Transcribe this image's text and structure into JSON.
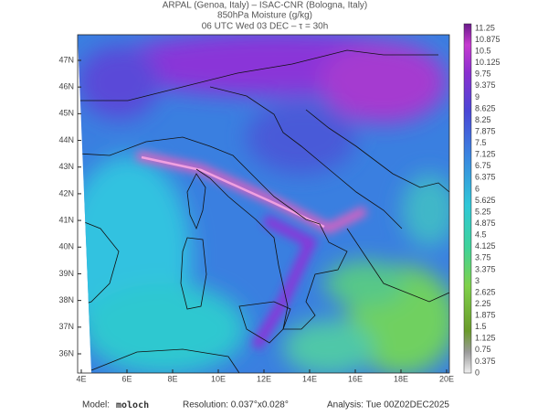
{
  "header": {
    "line1": "ARPAL (Genoa, Italy)  –  ISAC-CNR (Bologna, Italy)",
    "line2": "850hPa Moisture (g/kg)",
    "line3": "06 UTC Wed 03 DEC  –  τ = 30h"
  },
  "map": {
    "lon_labels": [
      "4E",
      "6E",
      "8E",
      "10E",
      "12E",
      "14E",
      "16E",
      "18E",
      "20E"
    ],
    "lat_labels": [
      "47N",
      "46N",
      "45N",
      "44N",
      "43N",
      "42N",
      "41N",
      "40N",
      "39N",
      "38N",
      "37N",
      "36N"
    ]
  },
  "colorbar": {
    "labels": [
      0,
      0.375,
      0.75,
      1.125,
      1.5,
      1.875,
      2.25,
      2.625,
      3,
      3.375,
      3.75,
      4.125,
      4.5,
      4.875,
      5.25,
      5.625,
      6,
      6.375,
      6.75,
      7.125,
      7.5,
      7.875,
      8.25,
      8.625,
      9,
      9.375,
      9.75,
      10.125,
      10.5,
      10.875,
      11.25
    ]
  },
  "footer": {
    "model_label": "Model:",
    "model": "moloch",
    "resolution": "Resolution: 0.037°x0.028°",
    "analysis": "Analysis: Tue 00Z02DEC2025"
  }
}
